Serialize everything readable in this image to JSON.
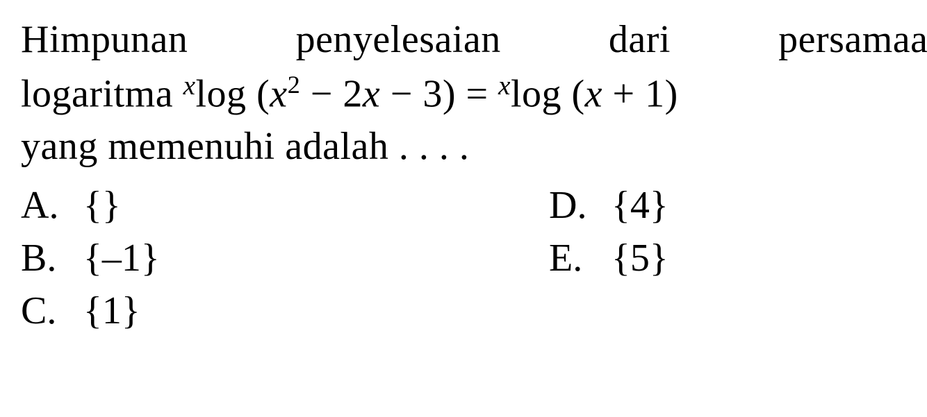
{
  "question": {
    "line1_word1": "Himpunan",
    "line1_word2": "penyelesaian",
    "line1_word3": "dari",
    "line1_word4": "persamaan",
    "line2_prefix": "logaritma ",
    "log_base": "x",
    "log_word": "log",
    "arg1_open": " (",
    "arg1_var": "x",
    "arg1_pow": "2",
    "arg1_mid": " − 2",
    "arg1_var2": "x",
    "arg1_end": " − 3) = ",
    "arg2_open": " (",
    "arg2_var": "x",
    "arg2_end": " + 1)",
    "line3": "yang memenuhi adalah . . . ."
  },
  "options": {
    "A": {
      "letter": "A.",
      "text": "{}"
    },
    "B": {
      "letter": "B.",
      "text": "{–1}"
    },
    "C": {
      "letter": "C.",
      "text": "{1}"
    },
    "D": {
      "letter": "D.",
      "text": "{4}"
    },
    "E": {
      "letter": "E.",
      "text": "{5}"
    }
  },
  "style": {
    "font_family": "Times New Roman",
    "text_color": "#000000",
    "background_color": "#ffffff",
    "font_size_pt": 42
  }
}
